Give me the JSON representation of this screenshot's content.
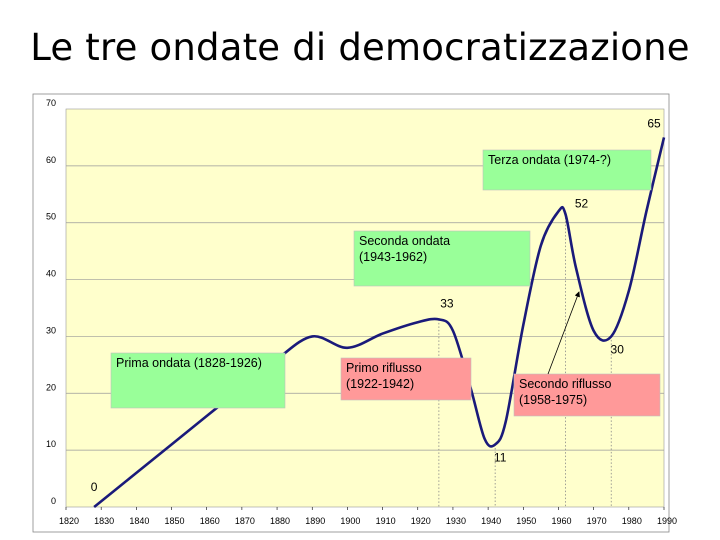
{
  "title": "Le tre ondate di democratizzazione",
  "chart_data": {
    "type": "line",
    "title": "Le tre ondate di democratizzazione",
    "xlabel": "",
    "ylabel": "",
    "xlim": [
      1820,
      1990
    ],
    "ylim": [
      0,
      70
    ],
    "x_ticks": [
      1820,
      1830,
      1840,
      1850,
      1860,
      1870,
      1880,
      1890,
      1900,
      1910,
      1920,
      1930,
      1940,
      1950,
      1960,
      1970,
      1980,
      1990
    ],
    "y_ticks": [
      0,
      10,
      20,
      30,
      40,
      50,
      60,
      70
    ],
    "grid": "horizontal",
    "background": "#ffffcc",
    "line_color": "#1a1a7a",
    "series": [
      {
        "x": [
          1828,
          1840,
          1850,
          1860,
          1870,
          1880,
          1890,
          1900,
          1910,
          1920,
          1926,
          1930,
          1935,
          1939,
          1942,
          1945,
          1950,
          1955,
          1960,
          1962,
          1965,
          1970,
          1975,
          1980,
          1985,
          1990
        ],
        "y": [
          0,
          6,
          11,
          16,
          21,
          26,
          30,
          28,
          30.5,
          32.5,
          33,
          31,
          21,
          12,
          11,
          15,
          32,
          46,
          52,
          51.5,
          42,
          31,
          30,
          38,
          52,
          65
        ]
      }
    ],
    "point_labels": [
      {
        "text": "0",
        "x": 1828,
        "y": 0
      },
      {
        "text": "33",
        "x": 1926,
        "y": 33
      },
      {
        "text": "11",
        "x": 1942,
        "y": 11
      },
      {
        "text": "52",
        "x": 1962,
        "y": 52
      },
      {
        "text": "30",
        "x": 1975,
        "y": 30
      },
      {
        "text": "65",
        "x": 1990,
        "y": 65
      }
    ],
    "annotations": [
      {
        "id": "prima",
        "lines": [
          "Prima ondata (1828-1926)"
        ],
        "color": "#99ff99"
      },
      {
        "id": "primo-riflusso",
        "lines": [
          "Primo riflusso",
          "(1922-1942)"
        ],
        "color": "#ff9999"
      },
      {
        "id": "seconda",
        "lines": [
          "Seconda ondata",
          "(1943-1962)"
        ],
        "color": "#99ff99"
      },
      {
        "id": "secondo-riflusso",
        "lines": [
          "Secondo riflusso",
          "(1958-1975)"
        ],
        "color": "#ff9999"
      },
      {
        "id": "terza",
        "lines": [
          "Terza ondata (1974-?)"
        ],
        "color": "#99ff99"
      }
    ],
    "reference_lines_x": [
      1926,
      1942,
      1962,
      1975
    ]
  }
}
